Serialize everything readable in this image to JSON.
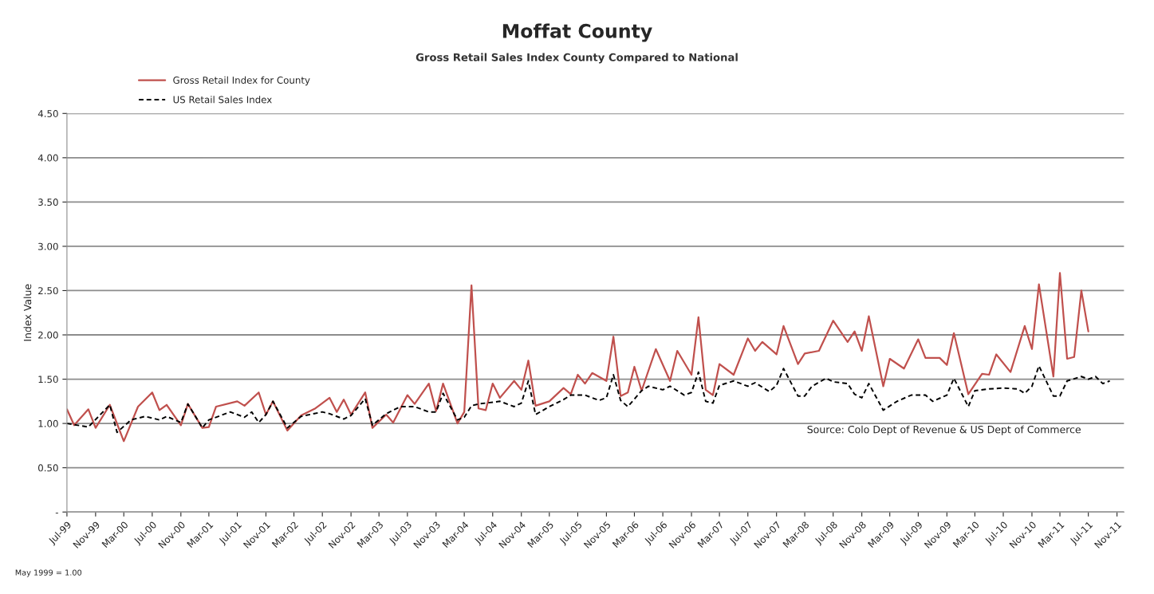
{
  "chart_data": {
    "type": "line",
    "title": "Moffat County",
    "subtitle": "Gross Retail Sales Index County Compared to National",
    "ylabel": "Index Value",
    "annotations": [
      "Source: Colo Dept of Revenue & US Dept of Commerce",
      "May 1999 = 1.00"
    ],
    "xlim": [
      "1999-07",
      "2011-12"
    ],
    "xticks": [
      {
        "value": "1999-07",
        "label": "Jul-99"
      },
      {
        "value": "1999-11",
        "label": "Nov-99"
      },
      {
        "value": "2000-03",
        "label": "Mar-00"
      },
      {
        "value": "2000-07",
        "label": "Jul-00"
      },
      {
        "value": "2000-11",
        "label": "Nov-00"
      },
      {
        "value": "2001-03",
        "label": "Mar-01"
      },
      {
        "value": "2001-07",
        "label": "Jul-01"
      },
      {
        "value": "2001-11",
        "label": "Nov-01"
      },
      {
        "value": "2002-03",
        "label": "Mar-02"
      },
      {
        "value": "2002-07",
        "label": "Jul-02"
      },
      {
        "value": "2002-11",
        "label": "Nov-02"
      },
      {
        "value": "2003-03",
        "label": "Mar-03"
      },
      {
        "value": "2003-07",
        "label": "Jul-03"
      },
      {
        "value": "2003-11",
        "label": "Nov-03"
      },
      {
        "value": "2004-03",
        "label": "Mar-04"
      },
      {
        "value": "2004-07",
        "label": "Jul-04"
      },
      {
        "value": "2004-11",
        "label": "Nov-04"
      },
      {
        "value": "2005-03",
        "label": "Mar-05"
      },
      {
        "value": "2005-07",
        "label": "Jul-05"
      },
      {
        "value": "2005-11",
        "label": "Nov-05"
      },
      {
        "value": "2006-03",
        "label": "Mar-06"
      },
      {
        "value": "2006-07",
        "label": "Jul-06"
      },
      {
        "value": "2006-11",
        "label": "Nov-06"
      },
      {
        "value": "2007-03",
        "label": "Mar-07"
      },
      {
        "value": "2007-07",
        "label": "Jul-07"
      },
      {
        "value": "2007-11",
        "label": "Nov-07"
      },
      {
        "value": "2008-03",
        "label": "Mar-08"
      },
      {
        "value": "2008-07",
        "label": "Jul-08"
      },
      {
        "value": "2008-11",
        "label": "Nov-08"
      },
      {
        "value": "2009-03",
        "label": "Mar-09"
      },
      {
        "value": "2009-07",
        "label": "Jul-09"
      },
      {
        "value": "2009-11",
        "label": "Nov-09"
      },
      {
        "value": "2010-03",
        "label": "Mar-10"
      },
      {
        "value": "2010-07",
        "label": "Jul-10"
      },
      {
        "value": "2010-11",
        "label": "Nov-10"
      },
      {
        "value": "2011-03",
        "label": "Mar-11"
      },
      {
        "value": "2011-07",
        "label": "Jul-11"
      },
      {
        "value": "2011-11",
        "label": "Nov-11"
      }
    ],
    "ylim": [
      0,
      4.5
    ],
    "yticks": [
      {
        "value": 0,
        "label": "-"
      },
      {
        "value": 0.5,
        "label": "0.50"
      },
      {
        "value": 1,
        "label": "1.00"
      },
      {
        "value": 1.5,
        "label": "1.50"
      },
      {
        "value": 2,
        "label": "2.00"
      },
      {
        "value": 2.5,
        "label": "2.50"
      },
      {
        "value": 3,
        "label": "3.00"
      },
      {
        "value": 3.5,
        "label": "3.50"
      },
      {
        "value": 4,
        "label": "4.00"
      },
      {
        "value": 4.5,
        "label": "4.50"
      }
    ],
    "grid": "y",
    "legend": "top left",
    "series": [
      {
        "name": "Gross Retail Index for County",
        "color": "#c0504d",
        "line_style": "solid",
        "x": [
          "1999-07",
          "1999-08",
          "1999-10",
          "1999-11",
          "2000-01",
          "2000-03",
          "2000-05",
          "2000-07",
          "2000-08",
          "2000-09",
          "2000-11",
          "2000-12",
          "2001-02",
          "2001-03",
          "2001-04",
          "2001-07",
          "2001-08",
          "2001-10",
          "2001-11",
          "2001-12",
          "2002-02",
          "2002-04",
          "2002-06",
          "2002-08",
          "2002-09",
          "2002-10",
          "2002-11",
          "2003-01",
          "2003-02",
          "2003-04",
          "2003-05",
          "2003-07",
          "2003-08",
          "2003-10",
          "2003-11",
          "2003-12",
          "2004-02",
          "2004-03",
          "2004-04",
          "2004-05",
          "2004-06",
          "2004-07",
          "2004-08",
          "2004-10",
          "2004-11",
          "2004-12",
          "2005-01",
          "2005-03",
          "2005-05",
          "2005-06",
          "2005-07",
          "2005-08",
          "2005-09",
          "2005-11",
          "2005-12",
          "2006-01",
          "2006-02",
          "2006-03",
          "2006-04",
          "2006-06",
          "2006-08",
          "2006-09",
          "2006-11",
          "2006-12",
          "2007-01",
          "2007-02",
          "2007-03",
          "2007-05",
          "2007-07",
          "2007-08",
          "2007-09",
          "2007-11",
          "2007-12",
          "2008-02",
          "2008-03",
          "2008-05",
          "2008-07",
          "2008-09",
          "2008-10",
          "2008-11",
          "2008-12",
          "2009-02",
          "2009-03",
          "2009-05",
          "2009-07",
          "2009-08",
          "2009-10",
          "2009-11",
          "2009-12",
          "2010-02",
          "2010-04",
          "2010-05",
          "2010-06",
          "2010-08",
          "2010-10",
          "2010-11",
          "2010-12",
          "2011-02",
          "2011-03",
          "2011-04",
          "2011-05",
          "2011-06",
          "2011-07"
        ],
        "values": [
          1.16,
          0.98,
          1.16,
          0.95,
          1.21,
          0.8,
          1.19,
          1.35,
          1.15,
          1.21,
          0.98,
          1.22,
          0.95,
          0.96,
          1.19,
          1.25,
          1.2,
          1.35,
          1.1,
          1.25,
          0.92,
          1.09,
          1.17,
          1.29,
          1.13,
          1.27,
          1.1,
          1.35,
          0.95,
          1.1,
          1.01,
          1.32,
          1.22,
          1.45,
          1.14,
          1.45,
          1.0,
          1.13,
          2.56,
          1.17,
          1.15,
          1.45,
          1.29,
          1.48,
          1.38,
          1.71,
          1.2,
          1.25,
          1.4,
          1.33,
          1.55,
          1.45,
          1.57,
          1.48,
          1.98,
          1.31,
          1.35,
          1.64,
          1.37,
          1.84,
          1.48,
          1.82,
          1.55,
          2.2,
          1.38,
          1.32,
          1.67,
          1.55,
          1.96,
          1.82,
          1.92,
          1.78,
          2.1,
          1.67,
          1.79,
          1.82,
          2.16,
          1.92,
          2.04,
          1.82,
          2.21,
          1.42,
          1.73,
          1.62,
          1.95,
          1.74,
          1.74,
          1.66,
          2.02,
          1.33,
          1.56,
          1.55,
          1.78,
          1.58,
          2.1,
          1.84,
          2.57,
          1.53,
          2.7,
          1.73,
          1.75,
          2.5,
          2.04
        ]
      },
      {
        "name": "US Retail Sales Index",
        "color": "#000000",
        "line_style": "dashed",
        "x": [
          "1999-07",
          "1999-10",
          "2000-01",
          "2000-02",
          "2000-04",
          "2000-06",
          "2000-08",
          "2000-09",
          "2000-11",
          "2000-12",
          "2001-02",
          "2001-03",
          "2001-06",
          "2001-08",
          "2001-09",
          "2001-10",
          "2001-11",
          "2001-12",
          "2002-02",
          "2002-04",
          "2002-07",
          "2002-08",
          "2002-10",
          "2002-11",
          "2003-01",
          "2003-02",
          "2003-04",
          "2003-06",
          "2003-08",
          "2003-10",
          "2003-11",
          "2003-12",
          "2004-02",
          "2004-03",
          "2004-04",
          "2004-05",
          "2004-08",
          "2004-10",
          "2004-11",
          "2004-12",
          "2005-01",
          "2005-03",
          "2005-05",
          "2005-06",
          "2005-08",
          "2005-10",
          "2005-11",
          "2005-12",
          "2006-01",
          "2006-02",
          "2006-04",
          "2006-05",
          "2006-07",
          "2006-08",
          "2006-10",
          "2006-11",
          "2006-12",
          "2007-01",
          "2007-02",
          "2007-03",
          "2007-05",
          "2007-07",
          "2007-08",
          "2007-10",
          "2007-11",
          "2007-12",
          "2008-02",
          "2008-03",
          "2008-04",
          "2008-06",
          "2008-07",
          "2008-09",
          "2008-10",
          "2008-11",
          "2008-12",
          "2009-02",
          "2009-04",
          "2009-06",
          "2009-08",
          "2009-09",
          "2009-11",
          "2009-12",
          "2010-02",
          "2010-03",
          "2010-05",
          "2010-07",
          "2010-09",
          "2010-10",
          "2010-11",
          "2010-12",
          "2011-02",
          "2011-03",
          "2011-04",
          "2011-06",
          "2011-07",
          "2011-08",
          "2011-09",
          "2011-10"
        ],
        "values": [
          1.0,
          0.96,
          1.21,
          0.9,
          1.04,
          1.08,
          1.04,
          1.08,
          1.01,
          1.22,
          0.95,
          1.04,
          1.13,
          1.07,
          1.13,
          1.01,
          1.1,
          1.25,
          0.95,
          1.08,
          1.13,
          1.11,
          1.05,
          1.09,
          1.28,
          0.98,
          1.11,
          1.19,
          1.19,
          1.13,
          1.13,
          1.34,
          1.04,
          1.07,
          1.2,
          1.22,
          1.25,
          1.19,
          1.23,
          1.48,
          1.1,
          1.19,
          1.27,
          1.32,
          1.32,
          1.26,
          1.29,
          1.55,
          1.26,
          1.19,
          1.37,
          1.42,
          1.38,
          1.42,
          1.32,
          1.35,
          1.58,
          1.25,
          1.23,
          1.43,
          1.48,
          1.42,
          1.46,
          1.36,
          1.43,
          1.62,
          1.31,
          1.31,
          1.42,
          1.51,
          1.47,
          1.45,
          1.33,
          1.29,
          1.45,
          1.15,
          1.25,
          1.32,
          1.32,
          1.25,
          1.32,
          1.51,
          1.19,
          1.37,
          1.39,
          1.4,
          1.39,
          1.34,
          1.42,
          1.65,
          1.31,
          1.31,
          1.48,
          1.53,
          1.5,
          1.53,
          1.45,
          1.48
        ]
      }
    ]
  }
}
